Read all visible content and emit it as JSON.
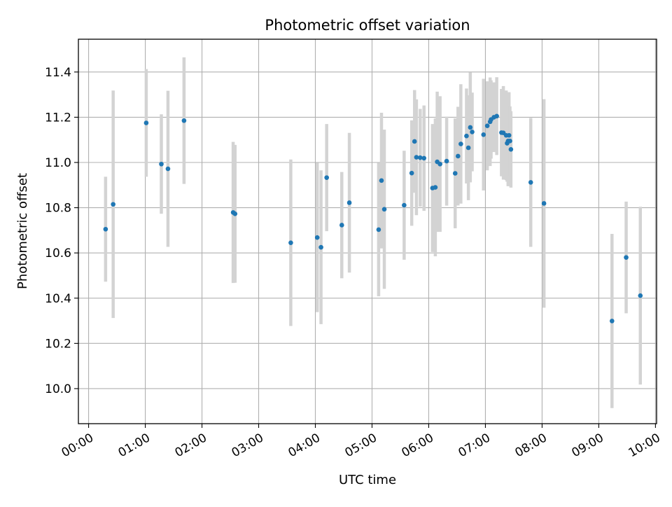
{
  "chart_data": {
    "type": "scatter",
    "title": "Photometric offset variation",
    "xlabel": "UTC time",
    "ylabel": "Photometric offset",
    "x_unit": "hours",
    "xlim": [
      -0.18,
      10.02
    ],
    "ylim": [
      9.845,
      11.545
    ],
    "x_ticks": [
      0,
      1,
      2,
      3,
      4,
      5,
      6,
      7,
      8,
      9,
      10
    ],
    "x_tick_labels": [
      "00:00",
      "01:00",
      "02:00",
      "03:00",
      "04:00",
      "05:00",
      "06:00",
      "07:00",
      "08:00",
      "09:00",
      "10:00"
    ],
    "y_ticks": [
      10.0,
      10.2,
      10.4,
      10.6,
      10.8,
      11.0,
      11.2,
      11.4
    ],
    "y_tick_labels": [
      "10.0",
      "10.2",
      "10.4",
      "10.6",
      "10.8",
      "11.0",
      "11.2",
      "11.4"
    ],
    "grid": true,
    "colors": {
      "point": "#1f77b4",
      "errorbar": "#d3d3d3",
      "grid": "#b0b0b0"
    },
    "series": [
      {
        "x": [
          "00:18",
          "00:26",
          "01:01",
          "01:17",
          "01:24",
          "01:41",
          "02:33",
          "02:35",
          "03:34",
          "04:02",
          "04:06",
          "04:12",
          "04:28",
          "04:36",
          "05:07",
          "05:10",
          "05:13",
          "05:34",
          "05:42",
          "05:45",
          "05:47",
          "05:51",
          "05:55",
          "06:04",
          "06:07",
          "06:09",
          "06:12",
          "06:19",
          "06:28",
          "06:31",
          "06:34",
          "06:40",
          "06:42",
          "06:44",
          "06:46",
          "06:58",
          "07:02",
          "07:05",
          "07:06",
          "07:09",
          "07:12",
          "07:17",
          "07:19",
          "07:22",
          "07:23",
          "07:24",
          "07:25",
          "07:26",
          "07:27",
          "07:48",
          "08:02",
          "09:14",
          "09:29",
          "09:44"
        ],
        "y": [
          10.705,
          10.815,
          11.175,
          10.993,
          10.972,
          11.185,
          10.779,
          10.773,
          10.645,
          10.668,
          10.625,
          10.933,
          10.723,
          10.822,
          10.703,
          10.92,
          10.793,
          10.811,
          10.953,
          11.093,
          11.023,
          11.021,
          11.019,
          10.887,
          10.89,
          11.003,
          10.993,
          11.006,
          10.952,
          11.028,
          11.082,
          11.117,
          11.065,
          11.155,
          11.135,
          11.123,
          11.162,
          11.18,
          11.19,
          11.2,
          11.205,
          11.132,
          11.131,
          11.12,
          11.085,
          11.095,
          11.12,
          11.095,
          11.058,
          10.912,
          10.819,
          10.299,
          10.58,
          10.411
        ],
        "yerr": [
          0.232,
          0.503,
          0.238,
          0.22,
          0.345,
          0.28,
          0.312,
          0.305,
          0.368,
          0.33,
          0.34,
          0.237,
          0.235,
          0.309,
          0.295,
          0.3,
          0.352,
          0.241,
          0.233,
          0.227,
          0.256,
          0.216,
          0.233,
          0.283,
          0.305,
          0.31,
          0.3,
          0.197,
          0.243,
          0.218,
          0.264,
          0.21,
          0.232,
          0.243,
          0.174,
          0.247,
          0.197,
          0.196,
          0.173,
          0.154,
          0.172,
          0.193,
          0.207,
          0.198,
          0.17,
          0.2,
          0.191,
          0.153,
          0.169,
          0.285,
          0.461,
          0.385,
          0.247,
          0.393
        ]
      }
    ]
  }
}
